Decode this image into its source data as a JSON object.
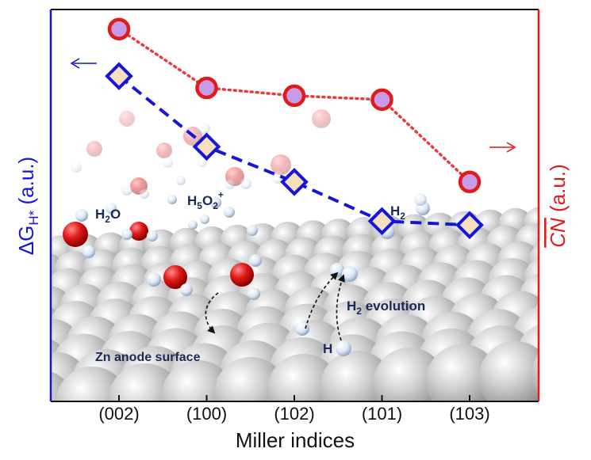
{
  "chart_data": {
    "type": "line",
    "categories": [
      "(002)",
      "(100)",
      "(102)",
      "(101)",
      "(103)"
    ],
    "xlabel": "Miller indices",
    "ylabel_left": "ΔG",
    "ylabel_left_sub": "H*",
    "ylabel_left_unit": " (a.u.)",
    "ylabel_right_symbol": "CN",
    "ylabel_right_unit": " (a.u.)",
    "ylim": [
      0,
      100
    ],
    "series": [
      {
        "axis": "left",
        "marker": "diamond",
        "line": "dashed",
        "color": "#1616d8",
        "fill": "#f6dfbd",
        "values": [
          83,
          65,
          56,
          46,
          45
        ]
      },
      {
        "axis": "right",
        "marker": "circle",
        "line": "dotted",
        "color": "#e31a1a",
        "fill": "#c89be8",
        "values": [
          95,
          80,
          78,
          77,
          56
        ]
      }
    ],
    "annotations": {
      "water": "H",
      "water_sub": "2",
      "water_tail": "O",
      "hydronium": "H",
      "hydronium_sub1": "5",
      "hydronium_mid": "O",
      "hydronium_sub2": "2",
      "hydronium_sup": "+",
      "hydrogen": "H",
      "hydrogen_sub": "2",
      "evolution": "H",
      "evolution_sub": "2",
      "evolution_tail": " evolution",
      "proton": "H",
      "surface": "Zn anode surface"
    },
    "colors": {
      "left_axis": "#1616d8",
      "right_axis": "#e31a1a",
      "frame_top_bottom": "#111111"
    }
  }
}
